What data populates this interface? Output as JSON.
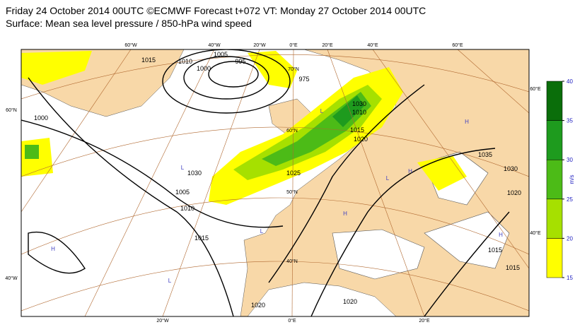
{
  "header": {
    "title": "Friday 24 October 2014 00UTC ©ECMWF Forecast t+072 VT: Monday 27 October 2014 00UTC",
    "subtitle": "Surface: Mean sea level pressure / 850-hPa wind speed"
  },
  "legend": {
    "unit": "m/s",
    "ticks": [
      15,
      20,
      25,
      30,
      35,
      40
    ],
    "colors": [
      "#ffff00",
      "#a6e000",
      "#4cbb17",
      "#1e9b1e",
      "#0a6e0a"
    ]
  },
  "map": {
    "edge_labels": [
      "60°W",
      "40°W",
      "20°W",
      "0°E",
      "20°E",
      "40°E",
      "60°E",
      "20°W",
      "0°E",
      "20°E",
      "60°N",
      "40°W",
      "60°E",
      "40°E"
    ],
    "lat_labels": [
      "70°N",
      "60°N",
      "50°N",
      "40°N"
    ],
    "isobar_labels": [
      "1015",
      "1010",
      "1005",
      "1000",
      "995",
      "975",
      "1000",
      "1030",
      "1010",
      "1015",
      "1020",
      "1030",
      "1005",
      "1010",
      "1015",
      "1025",
      "1035",
      "1030",
      "1020",
      "1015",
      "1015",
      "1020",
      "1020"
    ],
    "centres": [
      "H",
      "L",
      "L",
      "H",
      "H",
      "L",
      "L",
      "H",
      "H",
      "L"
    ]
  }
}
